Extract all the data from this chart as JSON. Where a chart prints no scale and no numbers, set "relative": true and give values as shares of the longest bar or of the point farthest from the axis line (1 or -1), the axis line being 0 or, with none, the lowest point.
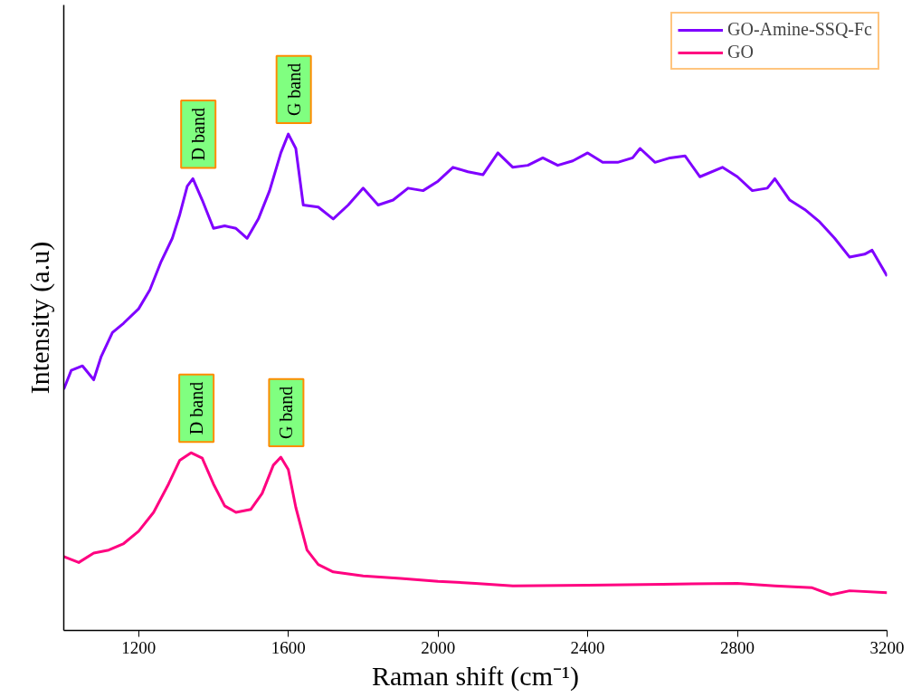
{
  "chart_data": {
    "type": "line",
    "relative": true,
    "xlabel": "Raman shift (cm⁻¹)",
    "ylabel": "Intensity (a.u)",
    "xlim": [
      1000,
      3200
    ],
    "xticks": [
      1200,
      1600,
      2000,
      2400,
      2800,
      3200
    ],
    "grid": false,
    "legend": "top right",
    "line_style": "solid",
    "series": [
      {
        "name": "GO-Amine-SSQ-Fc",
        "color": "#7f00ff",
        "x": [
          1000,
          1020,
          1050,
          1080,
          1100,
          1130,
          1160,
          1200,
          1230,
          1260,
          1290,
          1310,
          1330,
          1345,
          1370,
          1400,
          1430,
          1460,
          1490,
          1520,
          1550,
          1580,
          1600,
          1620,
          1640,
          1680,
          1720,
          1760,
          1800,
          1840,
          1880,
          1920,
          1960,
          2000,
          2040,
          2080,
          2120,
          2160,
          2200,
          2240,
          2280,
          2320,
          2360,
          2400,
          2440,
          2480,
          2520,
          2540,
          2580,
          2620,
          2660,
          2700,
          2760,
          2800,
          2840,
          2880,
          2900,
          2940,
          2980,
          3020,
          3060,
          3100,
          3140,
          3160,
          3200
        ],
        "values": [
          0.486,
          0.524,
          0.533,
          0.505,
          0.552,
          0.6,
          0.619,
          0.648,
          0.686,
          0.743,
          0.79,
          0.838,
          0.895,
          0.91,
          0.867,
          0.81,
          0.815,
          0.81,
          0.79,
          0.829,
          0.886,
          0.962,
          1.0,
          0.971,
          0.857,
          0.853,
          0.829,
          0.857,
          0.891,
          0.857,
          0.867,
          0.891,
          0.886,
          0.905,
          0.933,
          0.924,
          0.918,
          0.962,
          0.933,
          0.937,
          0.952,
          0.937,
          0.946,
          0.962,
          0.943,
          0.943,
          0.952,
          0.971,
          0.943,
          0.952,
          0.956,
          0.914,
          0.933,
          0.914,
          0.886,
          0.891,
          0.91,
          0.867,
          0.848,
          0.823,
          0.79,
          0.752,
          0.758,
          0.766,
          0.714
        ]
      },
      {
        "name": "GO",
        "color": "#ff0080",
        "x": [
          1000,
          1040,
          1080,
          1120,
          1160,
          1200,
          1240,
          1280,
          1310,
          1340,
          1370,
          1400,
          1430,
          1460,
          1500,
          1530,
          1560,
          1580,
          1600,
          1620,
          1650,
          1680,
          1720,
          1800,
          1900,
          2000,
          2100,
          2200,
          2400,
          2600,
          2800,
          2900,
          3000,
          3050,
          3100,
          3200
        ],
        "values": [
          0.149,
          0.137,
          0.156,
          0.162,
          0.175,
          0.2,
          0.238,
          0.295,
          0.343,
          0.358,
          0.347,
          0.295,
          0.251,
          0.238,
          0.244,
          0.276,
          0.333,
          0.349,
          0.324,
          0.248,
          0.162,
          0.133,
          0.118,
          0.11,
          0.105,
          0.099,
          0.095,
          0.09,
          0.091,
          0.093,
          0.095,
          0.09,
          0.086,
          0.072,
          0.08,
          0.076
        ]
      }
    ],
    "annotations": [
      {
        "text": "D band",
        "x": 1345,
        "y": 0.91
      },
      {
        "text": "G band",
        "x": 1600,
        "y": 1.0
      },
      {
        "text": "D band",
        "x": 1340,
        "y": 0.358
      },
      {
        "text": "G band",
        "x": 1580,
        "y": 0.349
      }
    ]
  }
}
